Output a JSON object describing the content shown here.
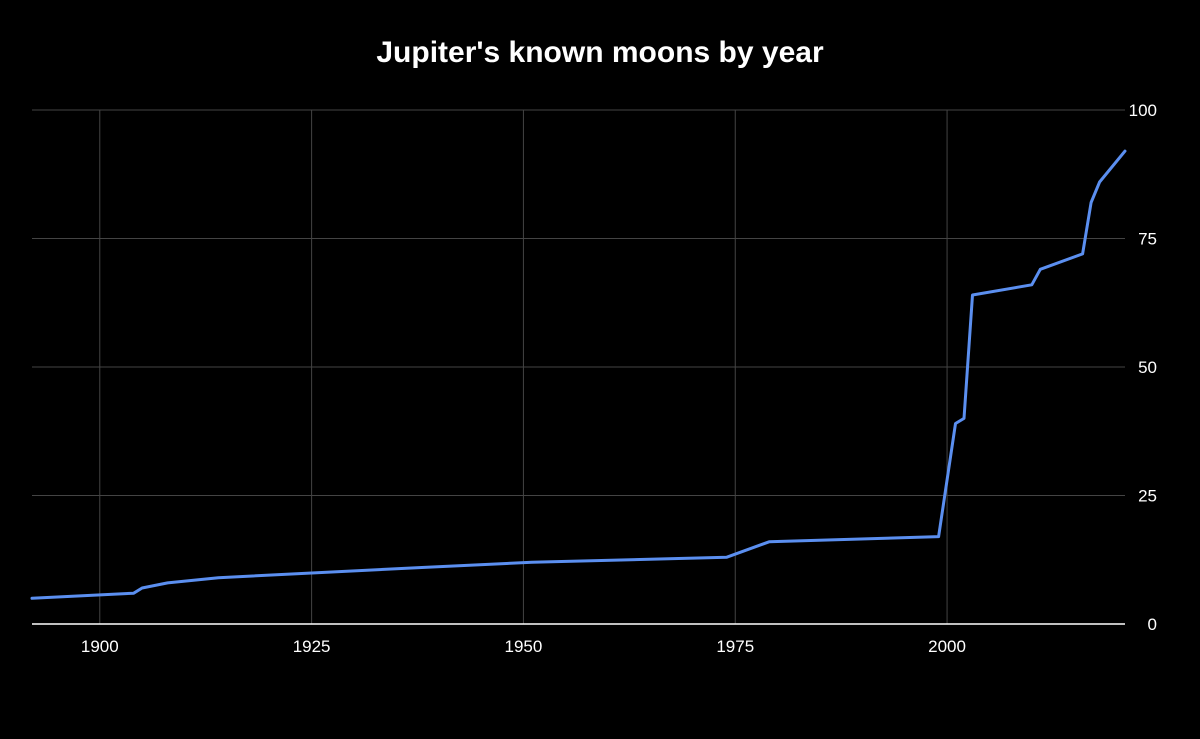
{
  "chart_data": {
    "type": "line",
    "title": "Jupiter's known moons by year",
    "xlabel": "",
    "ylabel": "",
    "xlim": [
      1892,
      2021
    ],
    "ylim": [
      0,
      100
    ],
    "x_ticks": [
      1900,
      1925,
      1950,
      1975,
      2000
    ],
    "y_ticks": [
      0,
      25,
      50,
      75,
      100
    ],
    "y_axis_side": "right",
    "grid": true,
    "legend": "none",
    "colors": {
      "background": "#000000",
      "grid": "#444444",
      "baseline": "#ffffff",
      "text": "#ffffff",
      "line": "#5b8ff0"
    },
    "series": [
      {
        "x": [
          1892,
          1904,
          1905,
          1908,
          1914,
          1938,
          1951,
          1974,
          1979,
          1999,
          2001,
          2002,
          2003,
          2010,
          2011,
          2016,
          2017,
          2018,
          2021
        ],
        "values": [
          5,
          6,
          7,
          8,
          9,
          11,
          12,
          13,
          16,
          17,
          39,
          40,
          64,
          66,
          69,
          72,
          82,
          86,
          92
        ]
      }
    ]
  }
}
